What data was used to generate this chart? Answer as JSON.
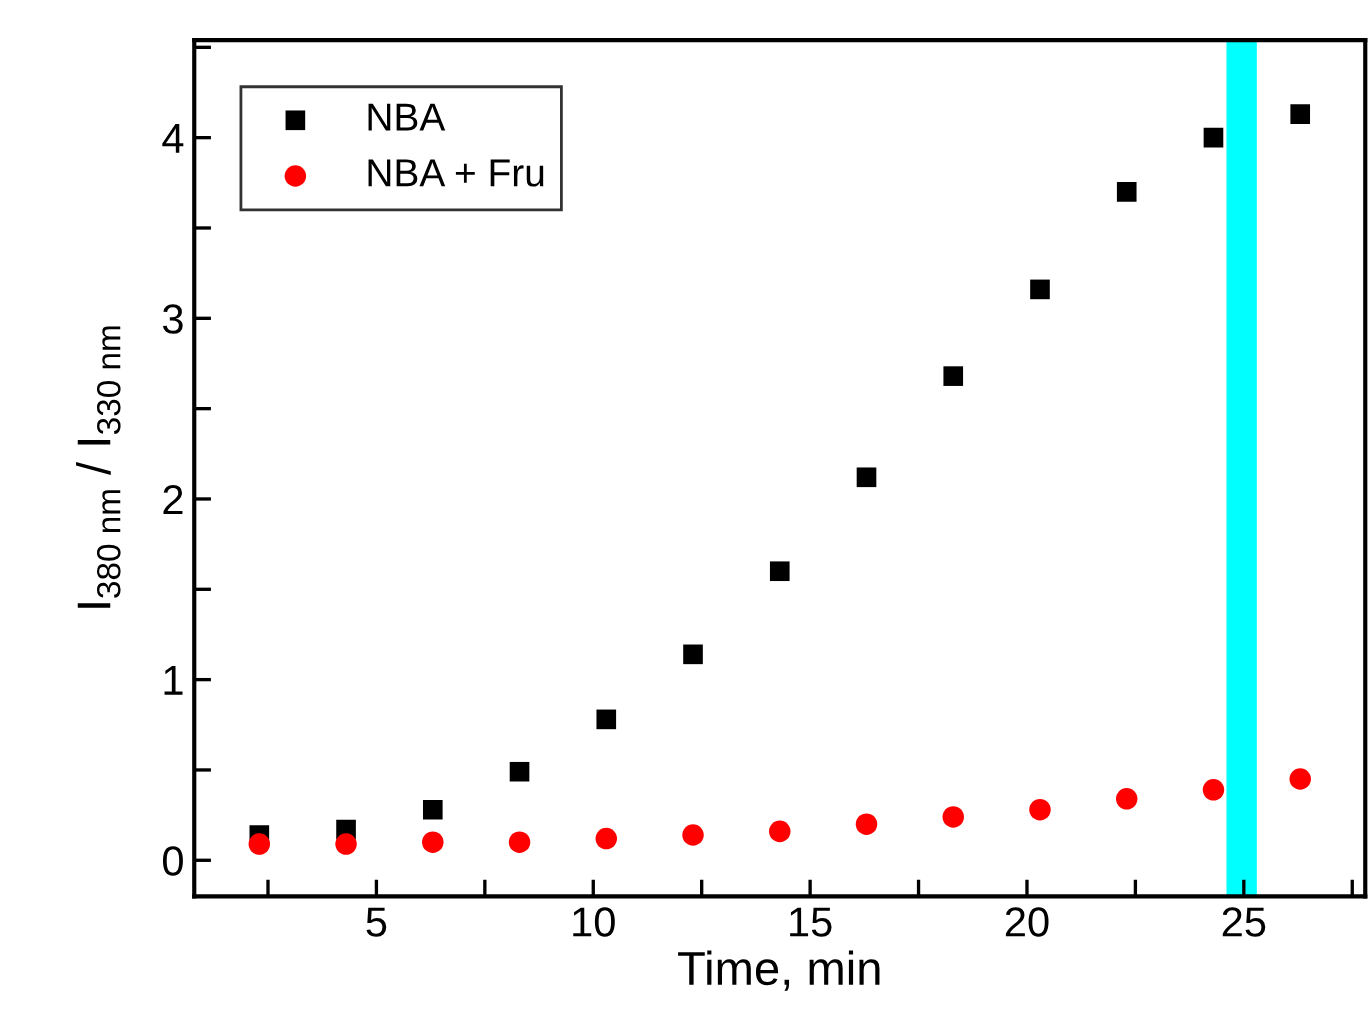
{
  "chart_data": {
    "type": "scatter",
    "xlabel": "Time, min",
    "ylabel": "I$_{380 nm}$ / I$_{330 nm}$",
    "x": [
      2.3,
      4.3,
      6.3,
      8.3,
      10.3,
      12.3,
      14.3,
      16.3,
      18.3,
      20.3,
      22.3,
      24.3,
      26.3
    ],
    "series": [
      {
        "name": "NBA",
        "color": "#000000",
        "marker": "square",
        "values": [
          0.14,
          0.17,
          0.28,
          0.49,
          0.78,
          1.14,
          1.6,
          2.12,
          2.68,
          3.16,
          3.7,
          4.0,
          4.13
        ]
      },
      {
        "name": "NBA + Fru",
        "color": "#ff0000",
        "marker": "circle",
        "values": [
          0.09,
          0.09,
          0.1,
          0.1,
          0.12,
          0.14,
          0.16,
          0.2,
          0.24,
          0.28,
          0.34,
          0.39,
          0.45
        ]
      }
    ],
    "bands": [
      {
        "axis": "x",
        "from": 24.6,
        "to": 25.3,
        "color": "#00ffff"
      }
    ],
    "xlim": [
      0.8,
      27.8
    ],
    "xticks": [
      {
        "value": 2.5,
        "label": null
      },
      5,
      {
        "value": 7.5,
        "label": null
      },
      10,
      {
        "value": 12.5,
        "label": null
      },
      15,
      {
        "value": 17.5,
        "label": null
      },
      20,
      {
        "value": 22.5,
        "label": null
      },
      25,
      {
        "value": 27.5,
        "label": null
      }
    ],
    "ylim": [
      -0.2,
      4.54
    ],
    "yticks": [
      0,
      {
        "value": 0.5,
        "label": null
      },
      1,
      {
        "value": 1.5,
        "label": null
      },
      2,
      {
        "value": 2.5,
        "label": null
      },
      3,
      {
        "value": 3.5,
        "label": null
      },
      4,
      {
        "value": 4.5,
        "label": null
      }
    ],
    "grid": false,
    "legend": "top left"
  }
}
